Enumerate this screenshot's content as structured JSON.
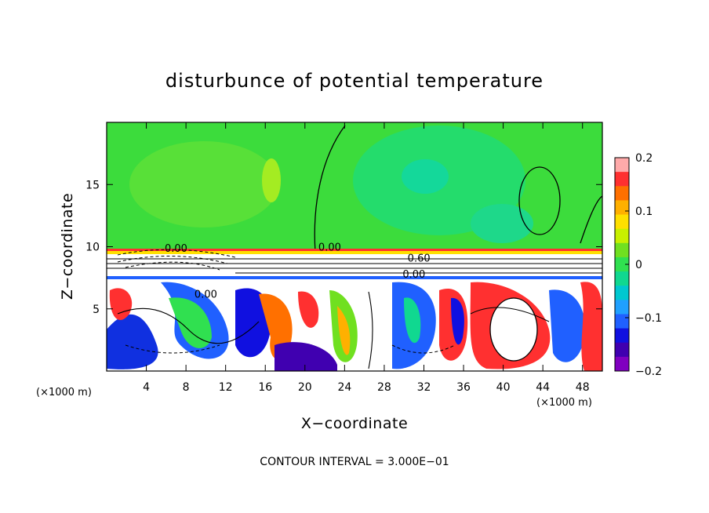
{
  "chart_data": {
    "type": "heatmap",
    "title": "disturbunce of potential temperature",
    "xlabel": "X−coordinate",
    "ylabel": "Z−coordinate",
    "x_unit": "(×1000 m)",
    "y_unit": "(×1000 m)",
    "xlim": [
      0,
      50
    ],
    "ylim": [
      0,
      20
    ],
    "x_ticks": [
      4,
      8,
      12,
      16,
      20,
      24,
      28,
      32,
      36,
      40,
      44,
      48
    ],
    "y_ticks": [
      5,
      10,
      15
    ],
    "colorbar": {
      "range": [
        -0.2,
        0.2
      ],
      "tick_labels": [
        "0.2",
        "0.1",
        "0",
        "−0.1",
        "−0.2"
      ],
      "tick_values": [
        0.2,
        0.1,
        0,
        -0.1,
        -0.2
      ],
      "colors": [
        "#ffaaaa",
        "#ff3030",
        "#ff7000",
        "#ffb000",
        "#ffe000",
        "#c8f000",
        "#70e020",
        "#30e050",
        "#10d890",
        "#00c8d0",
        "#20a0ff",
        "#2060ff",
        "#1010e0",
        "#4000b0",
        "#8000c0"
      ]
    },
    "contour_labels": [
      {
        "text": "0.00",
        "x": 7.0,
        "z": 9.6
      },
      {
        "text": "0.00",
        "x": 22.5,
        "z": 9.7
      },
      {
        "text": "0.60",
        "x": 31.5,
        "z": 8.8
      },
      {
        "text": "0.00",
        "x": 31.0,
        "z": 7.5
      },
      {
        "text": "0.00",
        "x": 10.0,
        "z": 5.9
      }
    ],
    "grid": false,
    "legend": "colorbar-right",
    "contour_interval_label": "CONTOUR INTERVAL = 3.000E−01"
  }
}
